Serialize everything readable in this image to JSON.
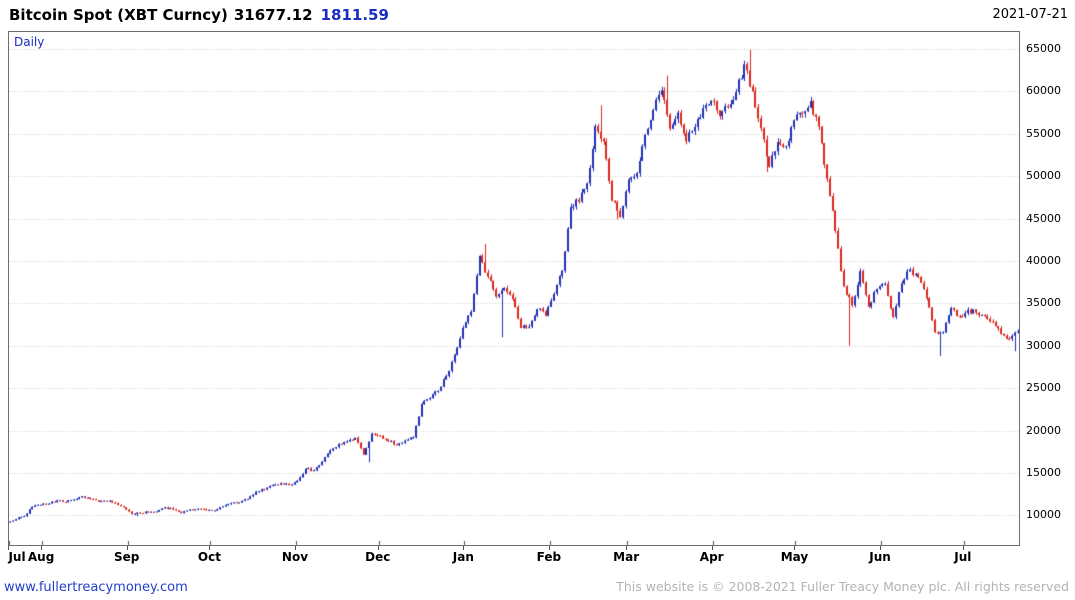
{
  "header": {
    "title": "Bitcoin Spot (XBT Curncy)",
    "last_price": "31677.12",
    "change": "1811.59",
    "date": "2021-07-21"
  },
  "chart": {
    "timeframe_label": "Daily"
  },
  "footer": {
    "site_link": "www.fullertreacymoney.com",
    "copyright": "This website is © 2008-2021 Fuller Treacy Money plc. All rights reserved"
  },
  "colors": {
    "accent_blue": "#1b2bc4",
    "link_blue": "#2340c8",
    "muted_gray": "#b3b3b3",
    "grid": "#cccccc",
    "border": "#6e6e6e"
  },
  "chart_data": {
    "type": "candlestick",
    "title": "Bitcoin Spot (XBT Curncy)",
    "timeframe": "Daily",
    "last": 31677.12,
    "change": 1811.59,
    "legend_position": "none",
    "grid": "horizontal-dotted",
    "x_tick_labels": [
      "Jul",
      "Aug",
      "Sep",
      "Oct",
      "Nov",
      "Dec",
      "Jan",
      "Feb",
      "Mar",
      "Apr",
      "May",
      "Jun",
      "Jul"
    ],
    "x_tick_days": [
      0,
      12,
      43,
      73,
      104,
      134,
      165,
      196,
      224,
      255,
      285,
      316,
      346
    ],
    "total_days": 366,
    "y_ticks": [
      10000,
      15000,
      20000,
      25000,
      30000,
      35000,
      40000,
      45000,
      50000,
      55000,
      60000,
      65000
    ],
    "ylim": [
      6500,
      67000
    ],
    "up_color": "#2031b4",
    "down_color": "#d8271f",
    "step_days": 3,
    "closes": [
      9200,
      9550,
      9900,
      11000,
      11250,
      11380,
      11760,
      11580,
      11880,
      12260,
      11920,
      11620,
      11680,
      11470,
      10950,
      10150,
      10250,
      10380,
      10450,
      10940,
      10700,
      10250,
      10690,
      10780,
      10620,
      10570,
      11060,
      11420,
      11500,
      11920,
      12800,
      13050,
      13560,
      13790,
      13560,
      14080,
      15500,
      15300,
      16320,
      17650,
      18420,
      18700,
      19150,
      17150,
      19630,
      19380,
      18750,
      18300,
      18800,
      19170,
      23130,
      23830,
      24680,
      26440,
      28950,
      32100,
      34000,
      40600,
      38150,
      35800,
      36800,
      35500,
      32100,
      32250,
      34300,
      33550,
      36100,
      38850,
      46350,
      47000,
      49150,
      55900,
      54100,
      47100,
      45150,
      49600,
      50350,
      54900,
      57800,
      60100,
      55600,
      57500,
      54100,
      55800,
      58000,
      58900,
      57100,
      58100,
      59900,
      63200,
      60000,
      55650,
      51100,
      54000,
      53550,
      56600,
      57400,
      58850,
      55850,
      49700,
      43550,
      37000,
      34770,
      38800,
      34600,
      36700,
      37300,
      33400,
      37350,
      39000,
      38100,
      35600,
      31600,
      31550,
      34450,
      33500,
      34250,
      33900,
      33500,
      32800,
      31400,
      30800,
      31677
    ],
    "spikes": [
      {
        "i": 15,
        "low": 9900
      },
      {
        "i": 43,
        "low": 16250
      },
      {
        "i": 57,
        "high": 42000
      },
      {
        "i": 59,
        "low": 31000
      },
      {
        "i": 71,
        "high": 58350
      },
      {
        "i": 73,
        "low": 44900
      },
      {
        "i": 79,
        "high": 61850
      },
      {
        "i": 89,
        "high": 64900
      },
      {
        "i": 91,
        "low": 50500
      },
      {
        "i": 101,
        "low": 30000
      },
      {
        "i": 112,
        "low": 28800
      },
      {
        "i": 121,
        "low": 29350
      }
    ]
  }
}
